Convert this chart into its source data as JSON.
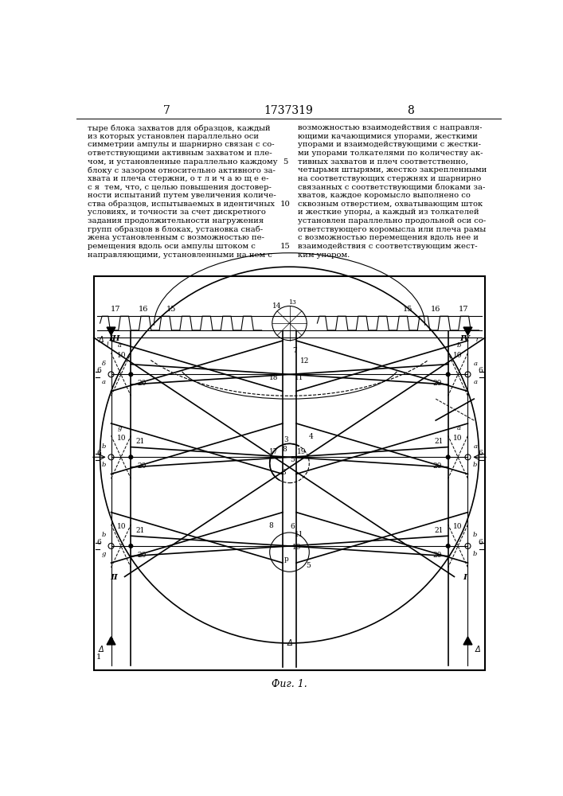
{
  "page_number_left": "7",
  "patent_number": "1737319",
  "page_number_right": "8",
  "left_column_text": "тыре блока захватов для образцов, каждый\nиз которых установлен параллельно оси\nсимметрии ампулы и шарнирно связан с со-\nответствующими активным захватом и пле-\nчом, и установленные параллельно каждому\nблоку с зазором относительно активного за-\nхвата и плеча стержни, о т л и ч а ю щ е е-\nс я  тем, что, с целью повышения достовер-\nности испытаний путем увеличения количе-\nства образцов, испытываемых в идентичных\nусловиях, и точности за счет дискретного\nзадания продолжительности нагружения\nгрупп образцов в блоках, установка снаб-\nжена установленным с возможностью пе-\nремещения вдоль оси ампулы штоком с\nнаправляющими, установленными на нем с",
  "right_column_text": "возможностью взаимодействия с направля-\nющими качающимися упорами, жесткими\nупорами и взаимодействующими с жестки-\nми упорами толкателями по количеству ак-\nтивных захватов и плеч соответственно,\nчетырьмя штырями, жестко закрепленными\nна соответствующих стержнях и шарнирно\nсвязанных с соответствующими блоками за-\nхватов, каждое коромысло выполнено со\nсквозным отверстием, охватывающим шток\nи жесткие упоры, а каждый из толкателей\nустановлен параллельно продольной оси со-\nответствующего коромысла или плеча рамы\nс возможностью перемещения вдоль нее и\nвзаимодействия с соответствующим жест-\nким упором.",
  "line_number_5": "5",
  "line_number_10": "10",
  "line_number_15": "15",
  "figure_caption": "Фиг. 1.",
  "bg_color": "#ffffff",
  "text_color": "#000000",
  "font_size_header": 10,
  "font_size_body": 7.2,
  "font_size_caption": 9
}
